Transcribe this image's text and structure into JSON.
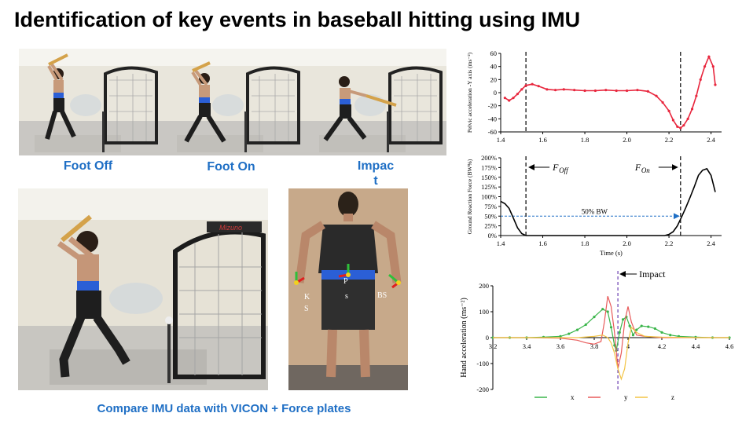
{
  "title": "Identification of key events in baseball hitting using IMU",
  "captions": {
    "foot_off": "Foot Off",
    "foot_on": "Foot On",
    "impact_line1": "Impac",
    "impact_line2": "t",
    "bottom": "Compare IMU data with VICON + Force plates"
  },
  "photos": {
    "back_labels": {
      "ks1": "K",
      "ks2": "S",
      "ps1": "P",
      "ps2": "s",
      "bs": "BS"
    },
    "net_brand": "Mizuno"
  },
  "chart_data": [
    {
      "type": "line",
      "id": "pelvic",
      "ylabel": "Pelvic acceleration -Y axis (ms⁻²)",
      "xlim": [
        1.4,
        2.45
      ],
      "ylim": [
        -60,
        60
      ],
      "yticks": [
        -60,
        -40,
        -20,
        0,
        20,
        40,
        60
      ],
      "xticks": [
        1.4,
        1.6,
        1.8,
        2.0,
        2.2,
        2.4
      ],
      "xtick_labels": [
        "1.4",
        "1.6",
        "1.8",
        "2.0",
        "2.2",
        "2.4"
      ],
      "series": [
        {
          "color": "#e8263d",
          "x": [
            1.42,
            1.44,
            1.46,
            1.48,
            1.5,
            1.52,
            1.55,
            1.58,
            1.62,
            1.66,
            1.7,
            1.75,
            1.8,
            1.85,
            1.9,
            1.95,
            2.0,
            2.05,
            2.1,
            2.14,
            2.17,
            2.2,
            2.22,
            2.24,
            2.255,
            2.27,
            2.29,
            2.31,
            2.33,
            2.35,
            2.37,
            2.39,
            2.41,
            2.42
          ],
          "y": [
            -8,
            -12,
            -8,
            -2,
            5,
            11,
            13,
            10,
            5,
            4,
            5,
            4,
            3,
            3,
            4,
            3,
            3,
            4,
            2,
            -5,
            -15,
            -28,
            -42,
            -52,
            -54,
            -50,
            -40,
            -25,
            -5,
            20,
            40,
            55,
            40,
            12
          ]
        }
      ],
      "vlines": [
        1.52,
        2.255
      ]
    },
    {
      "type": "line",
      "id": "grf",
      "ylabel": "Ground Reaction Force (BW%)",
      "xlabel": "Time (s)",
      "xlim": [
        1.4,
        2.45
      ],
      "ylim": [
        0,
        200
      ],
      "yticks": [
        0,
        25,
        50,
        75,
        100,
        125,
        150,
        175,
        200
      ],
      "ytick_labels": [
        "0%",
        "25%",
        "50%",
        "75%",
        "100%",
        "125%",
        "150%",
        "175%",
        "200%"
      ],
      "xticks": [
        1.4,
        1.6,
        1.8,
        2.0,
        2.2,
        2.4
      ],
      "xtick_labels": [
        "1.4",
        "1.6",
        "1.8",
        "2.0",
        "2.2",
        "2.4"
      ],
      "series": [
        {
          "color": "#000000",
          "x": [
            1.4,
            1.42,
            1.44,
            1.46,
            1.48,
            1.5,
            1.52,
            1.55,
            1.6,
            1.7,
            1.8,
            1.9,
            2.0,
            2.1,
            2.15,
            2.18,
            2.2,
            2.22,
            2.24,
            2.26,
            2.28,
            2.3,
            2.32,
            2.34,
            2.36,
            2.38,
            2.4,
            2.42
          ],
          "y": [
            88,
            82,
            70,
            45,
            20,
            5,
            0,
            0,
            0,
            0,
            0,
            0,
            0,
            0,
            0,
            0,
            3,
            10,
            25,
            48,
            72,
            98,
            125,
            155,
            168,
            172,
            155,
            112
          ]
        }
      ],
      "vlines": [
        1.52,
        2.255
      ],
      "hline": {
        "y": 50,
        "label": "50% BW"
      },
      "annotations": {
        "foot_off": "F",
        "foot_off_sub": "Off",
        "foot_on": "F",
        "foot_on_sub": "On"
      }
    },
    {
      "type": "line",
      "id": "hand",
      "ylabel": "Hand acceleration (ms⁻²)",
      "xlim": [
        3.2,
        4.6
      ],
      "ylim": [
        -200,
        200
      ],
      "yticks": [
        -200,
        -100,
        0,
        100,
        200
      ],
      "xticks": [
        3.2,
        3.4,
        3.6,
        3.8,
        4.0,
        4.2,
        4.4,
        4.6
      ],
      "xtick_labels": [
        "3.2",
        "3.4",
        "3.6",
        "3.8",
        "4",
        "4.2",
        "4.4",
        "4.6"
      ],
      "impact_label": "Impact",
      "impact_x": 3.94,
      "series": [
        {
          "name": "x",
          "color": "#3ab54a",
          "x": [
            3.2,
            3.3,
            3.4,
            3.5,
            3.6,
            3.65,
            3.7,
            3.75,
            3.8,
            3.85,
            3.88,
            3.9,
            3.92,
            3.93,
            3.95,
            3.97,
            3.99,
            4.01,
            4.03,
            4.05,
            4.08,
            4.12,
            4.16,
            4.2,
            4.25,
            4.3,
            4.4,
            4.5,
            4.6
          ],
          "y": [
            0,
            0,
            0,
            2,
            5,
            15,
            30,
            50,
            80,
            110,
            100,
            40,
            -30,
            -50,
            20,
            70,
            80,
            45,
            10,
            30,
            45,
            42,
            35,
            20,
            10,
            5,
            2,
            0,
            0
          ]
        },
        {
          "name": "y",
          "color": "#e85a5a",
          "x": [
            3.2,
            3.4,
            3.6,
            3.7,
            3.75,
            3.8,
            3.84,
            3.86,
            3.88,
            3.9,
            3.92,
            3.94,
            3.96,
            3.98,
            4.0,
            4.02,
            4.05,
            4.1,
            4.2,
            4.4,
            4.6
          ],
          "y": [
            0,
            0,
            -2,
            -10,
            -20,
            -25,
            -15,
            60,
            160,
            120,
            20,
            -120,
            -60,
            60,
            120,
            60,
            10,
            5,
            0,
            0,
            0
          ]
        },
        {
          "name": "z",
          "color": "#f2c445",
          "x": [
            3.2,
            3.5,
            3.7,
            3.8,
            3.85,
            3.88,
            3.9,
            3.92,
            3.94,
            3.96,
            3.98,
            4.0,
            4.02,
            4.05,
            4.1,
            4.2,
            4.4,
            4.6
          ],
          "y": [
            0,
            0,
            0,
            5,
            10,
            0,
            -20,
            -60,
            -120,
            -160,
            -120,
            -20,
            40,
            20,
            5,
            2,
            0,
            0
          ]
        }
      ]
    }
  ]
}
